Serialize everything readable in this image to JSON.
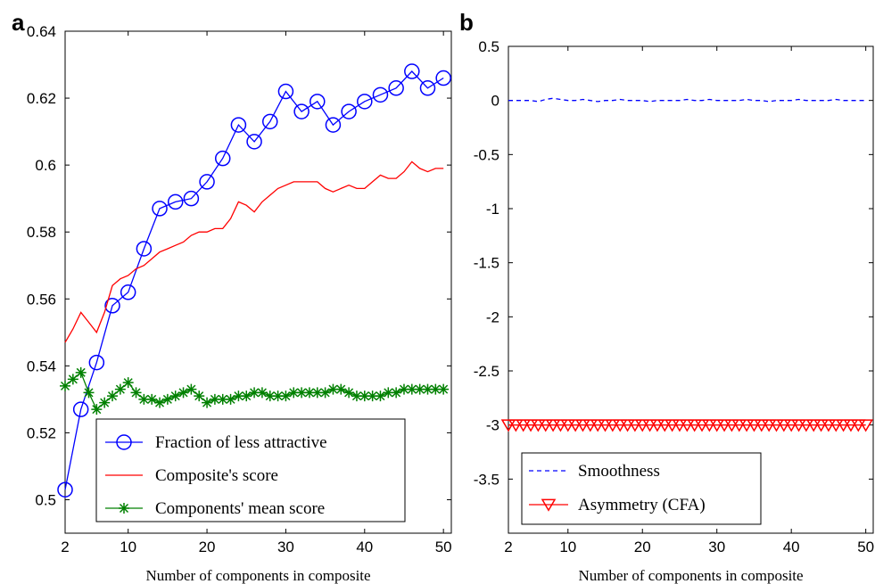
{
  "chart_data": [
    {
      "panel_label": "a",
      "type": "line",
      "xlabel": "Number of components in composite",
      "ylabel": "",
      "xlim": [
        2,
        51
      ],
      "ylim": [
        0.49,
        0.64
      ],
      "xticks": [
        2,
        10,
        20,
        30,
        40,
        50
      ],
      "yticks": [
        0.5,
        0.52,
        0.54,
        0.56,
        0.58,
        0.6,
        0.62,
        0.64
      ],
      "ytick_labels": [
        "0.5",
        "0.52",
        "0.54",
        "0.56",
        "0.58",
        "0.6",
        "0.62",
        "0.64"
      ],
      "legend_position": "bottom-right",
      "series": [
        {
          "name": "Fraction of less attractive",
          "color": "#0000ff",
          "style": "solid",
          "marker": "circle",
          "x": [
            2,
            4,
            6,
            8,
            10,
            12,
            14,
            16,
            18,
            20,
            22,
            24,
            26,
            28,
            30,
            32,
            34,
            36,
            38,
            40,
            42,
            44,
            46,
            48,
            50
          ],
          "y": [
            0.503,
            0.527,
            0.541,
            0.558,
            0.562,
            0.575,
            0.587,
            0.589,
            0.59,
            0.595,
            0.602,
            0.612,
            0.607,
            0.613,
            0.622,
            0.616,
            0.619,
            0.612,
            0.616,
            0.619,
            0.621,
            0.623,
            0.628,
            0.623,
            0.626
          ]
        },
        {
          "name": "Composite's score",
          "color": "#ff0000",
          "style": "solid",
          "marker": "none",
          "x": [
            2,
            3,
            4,
            5,
            6,
            7,
            8,
            9,
            10,
            11,
            12,
            13,
            14,
            15,
            16,
            17,
            18,
            19,
            20,
            21,
            22,
            23,
            24,
            25,
            26,
            27,
            28,
            29,
            30,
            31,
            32,
            33,
            34,
            35,
            36,
            37,
            38,
            39,
            40,
            41,
            42,
            43,
            44,
            45,
            46,
            47,
            48,
            49,
            50
          ],
          "y": [
            0.547,
            0.551,
            0.556,
            0.553,
            0.55,
            0.556,
            0.564,
            0.566,
            0.567,
            0.569,
            0.57,
            0.572,
            0.574,
            0.575,
            0.576,
            0.577,
            0.579,
            0.58,
            0.58,
            0.581,
            0.581,
            0.584,
            0.589,
            0.588,
            0.586,
            0.589,
            0.591,
            0.593,
            0.594,
            0.595,
            0.595,
            0.595,
            0.595,
            0.593,
            0.592,
            0.593,
            0.594,
            0.593,
            0.593,
            0.595,
            0.597,
            0.596,
            0.596,
            0.598,
            0.601,
            0.599,
            0.598,
            0.599,
            0.599
          ]
        },
        {
          "name": "Components' mean score",
          "color": "#008000",
          "style": "solid",
          "marker": "star",
          "x": [
            2,
            3,
            4,
            5,
            6,
            7,
            8,
            9,
            10,
            11,
            12,
            13,
            14,
            15,
            16,
            17,
            18,
            19,
            20,
            21,
            22,
            23,
            24,
            25,
            26,
            27,
            28,
            29,
            30,
            31,
            32,
            33,
            34,
            35,
            36,
            37,
            38,
            39,
            40,
            41,
            42,
            43,
            44,
            45,
            46,
            47,
            48,
            49,
            50
          ],
          "y": [
            0.534,
            0.536,
            0.538,
            0.532,
            0.527,
            0.529,
            0.531,
            0.533,
            0.535,
            0.532,
            0.53,
            0.53,
            0.529,
            0.53,
            0.531,
            0.532,
            0.533,
            0.531,
            0.529,
            0.53,
            0.53,
            0.53,
            0.531,
            0.531,
            0.532,
            0.532,
            0.531,
            0.531,
            0.531,
            0.532,
            0.532,
            0.532,
            0.532,
            0.532,
            0.533,
            0.533,
            0.532,
            0.531,
            0.531,
            0.531,
            0.531,
            0.532,
            0.532,
            0.533,
            0.533,
            0.533,
            0.533,
            0.533,
            0.533
          ]
        }
      ]
    },
    {
      "panel_label": "b",
      "type": "line",
      "xlabel": "Number of components in composite",
      "ylabel": "",
      "xlim": [
        2,
        51
      ],
      "ylim": [
        -4,
        0.5
      ],
      "xticks": [
        2,
        10,
        20,
        30,
        40,
        50
      ],
      "yticks": [
        0.5,
        0,
        -0.5,
        -1,
        -1.5,
        -2,
        -2.5,
        -3,
        -3.5
      ],
      "ytick_labels": [
        "0.5",
        "0",
        "-0.5",
        "-1",
        "-1.5",
        "-2",
        "-2.5",
        "-3",
        "-3.5"
      ],
      "legend_position": "bottom-left",
      "series": [
        {
          "name": "Smoothness",
          "color": "#0000ff",
          "style": "dashed",
          "marker": "none",
          "x": [
            2,
            3,
            4,
            5,
            6,
            7,
            8,
            9,
            10,
            11,
            12,
            13,
            14,
            15,
            16,
            17,
            18,
            19,
            20,
            21,
            22,
            23,
            24,
            25,
            26,
            27,
            28,
            29,
            30,
            31,
            32,
            33,
            34,
            35,
            36,
            37,
            38,
            39,
            40,
            41,
            42,
            43,
            44,
            45,
            46,
            47,
            48,
            49,
            50
          ],
          "y": [
            0,
            0,
            0,
            0,
            -0.01,
            0.01,
            0.02,
            0.01,
            0,
            0,
            0.01,
            0,
            -0.01,
            0,
            0,
            0.01,
            0,
            0,
            0,
            -0.01,
            0,
            0,
            0,
            0,
            0.01,
            0,
            0,
            0.01,
            0,
            0,
            0,
            0,
            0.01,
            0,
            0,
            -0.01,
            0,
            0,
            0,
            0.01,
            0,
            0,
            0,
            0,
            0.01,
            0,
            0,
            0,
            0
          ]
        },
        {
          "name": "Asymmetry (CFA)",
          "color": "#ff0000",
          "style": "solid",
          "marker": "triangle-down",
          "x": [
            2,
            3,
            4,
            5,
            6,
            7,
            8,
            9,
            10,
            11,
            12,
            13,
            14,
            15,
            16,
            17,
            18,
            19,
            20,
            21,
            22,
            23,
            24,
            25,
            26,
            27,
            28,
            29,
            30,
            31,
            32,
            33,
            34,
            35,
            36,
            37,
            38,
            39,
            40,
            41,
            42,
            43,
            44,
            45,
            46,
            47,
            48,
            49,
            50
          ],
          "y": [
            -3,
            -3,
            -3,
            -3,
            -3,
            -3,
            -3,
            -3,
            -3,
            -3,
            -3,
            -3,
            -3,
            -3,
            -3,
            -3,
            -3,
            -3,
            -3,
            -3,
            -3,
            -3,
            -3,
            -3,
            -3,
            -3,
            -3,
            -3,
            -3,
            -3,
            -3,
            -3,
            -3,
            -3,
            -3,
            -3,
            -3,
            -3,
            -3,
            -3,
            -3,
            -3,
            -3,
            -3,
            -3,
            -3,
            -3,
            -3,
            -3
          ]
        }
      ]
    }
  ]
}
